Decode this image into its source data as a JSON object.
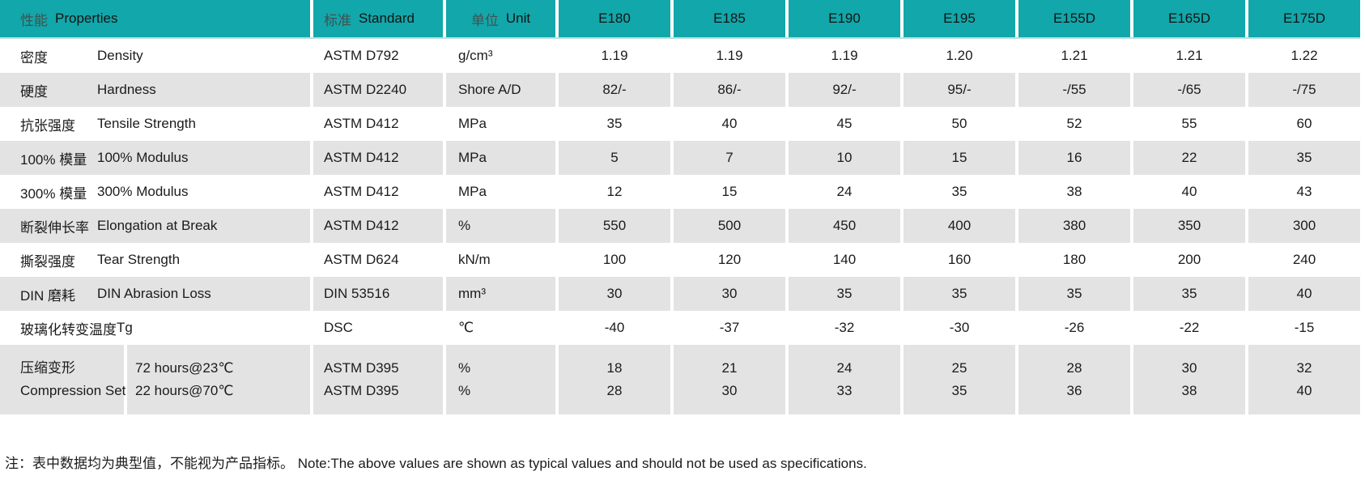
{
  "colors": {
    "header_teal": "#12a7aa",
    "header_accent_line": "#b5e0e1",
    "row_gray": "#e3e3e3",
    "text": "#1b1b1b",
    "header_zh_text": "#41514f"
  },
  "table": {
    "header": {
      "properties_zh": "性能",
      "properties_en": "Properties",
      "standard_zh": "标准",
      "standard_en": "Standard",
      "unit_zh": "单位",
      "unit_en": "Unit",
      "products": [
        "E180",
        "E185",
        "E190",
        "E195",
        "E155D",
        "E165D",
        "E175D"
      ]
    },
    "rows": [
      {
        "zh": "密度",
        "en": "Density",
        "standard": "ASTM D792",
        "unit": "g/cm³",
        "values": [
          "1.19",
          "1.19",
          "1.19",
          "1.20",
          "1.21",
          "1.21",
          "1.22"
        ]
      },
      {
        "zh": "硬度",
        "en": "Hardness",
        "standard": "ASTM D2240",
        "unit": "Shore A/D",
        "values": [
          "82/-",
          "86/-",
          "92/-",
          "95/-",
          "-/55",
          "-/65",
          "-/75"
        ]
      },
      {
        "zh": "抗张强度",
        "en": "Tensile Strength",
        "standard": "ASTM D412",
        "unit": "MPa",
        "values": [
          "35",
          "40",
          "45",
          "50",
          "52",
          "55",
          "60"
        ]
      },
      {
        "zh": "100% 模量",
        "en": "100% Modulus",
        "standard": "ASTM D412",
        "unit": "MPa",
        "values": [
          "5",
          "7",
          "10",
          "15",
          "16",
          "22",
          "35"
        ]
      },
      {
        "zh": "300% 模量",
        "en": "300% Modulus",
        "standard": "ASTM D412",
        "unit": "MPa",
        "values": [
          "12",
          "15",
          "24",
          "35",
          "38",
          "40",
          "43"
        ]
      },
      {
        "zh": "断裂伸长率",
        "en": "Elongation at Break",
        "standard": "ASTM D412",
        "unit": "%",
        "values": [
          "550",
          "500",
          "450",
          "400",
          "380",
          "350",
          "300"
        ]
      },
      {
        "zh": "撕裂强度",
        "en": "Tear Strength",
        "standard": "ASTM D624",
        "unit": "kN/m",
        "values": [
          "100",
          "120",
          "140",
          "160",
          "180",
          "200",
          "240"
        ]
      },
      {
        "zh": "DIN 磨耗",
        "en": "DIN Abrasion Loss",
        "standard": "DIN 53516",
        "unit": "mm³",
        "values": [
          "30",
          "30",
          "35",
          "35",
          "35",
          "35",
          "40"
        ]
      },
      {
        "zh": "玻璃化转变温度",
        "en": "Tg",
        "standard": "DSC",
        "unit": "℃",
        "values": [
          "-40",
          "-37",
          "-32",
          "-30",
          "-26",
          "-22",
          "-15"
        ]
      }
    ],
    "compression_row": {
      "zh": "压缩变形",
      "en": "Compression Set",
      "conditions": [
        "72 hours@23℃",
        "22 hours@70℃"
      ],
      "standards": [
        "ASTM D395",
        "ASTM D395"
      ],
      "units": [
        "%",
        "%"
      ],
      "values": [
        [
          "18",
          "21",
          "24",
          "25",
          "28",
          "30",
          "32"
        ],
        [
          "28",
          "30",
          "33",
          "35",
          "36",
          "38",
          "40"
        ]
      ]
    }
  },
  "note": "注：表中数据均为典型值，不能视为产品指标。 Note:The above values are shown as typical values and should not be used as specifications."
}
